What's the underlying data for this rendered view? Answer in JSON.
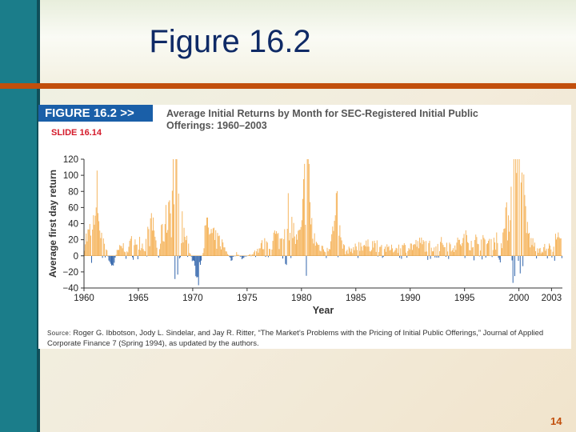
{
  "slide": {
    "title": "Figure 16.2",
    "figure_label": "FIGURE 16.2 >>",
    "slide_label": "SLIDE 16.14",
    "source_label": "Source:",
    "source_text": "Roger G. Ibbotson, Jody L. Sindelar, and Jay R. Ritter, “The Market’s Problems with the Pricing of Initial Public Offerings,” Journal of Applied Corporate Finance 7 (Spring 1994), as updated by the authors.",
    "page_number": "14"
  },
  "chart_data": {
    "type": "bar",
    "title": "Average Initial Returns by Month for SEC-Registered Initial Public Offerings: 1960–2003",
    "xlabel": "Year",
    "ylabel": "Average first day return",
    "xlim": [
      1960,
      2004
    ],
    "ylim": [
      -40,
      120
    ],
    "x_ticks": [
      1960,
      1965,
      1970,
      1975,
      1980,
      1985,
      1990,
      1995,
      2000,
      2003
    ],
    "y_ticks": [
      -40,
      -20,
      0,
      20,
      40,
      60,
      80,
      100,
      120
    ],
    "grid": false,
    "positive_color": "#f5b35a",
    "negative_color": "#2a5fa8",
    "anchors": [
      [
        1960.0,
        18
      ],
      [
        1960.5,
        28
      ],
      [
        1961.0,
        40
      ],
      [
        1961.2,
        75
      ],
      [
        1961.5,
        30
      ],
      [
        1962.0,
        10
      ],
      [
        1962.3,
        -10
      ],
      [
        1962.6,
        -15
      ],
      [
        1963.0,
        5
      ],
      [
        1963.5,
        12
      ],
      [
        1964.0,
        8
      ],
      [
        1964.5,
        20
      ],
      [
        1965.0,
        22
      ],
      [
        1965.5,
        10
      ],
      [
        1966.0,
        30
      ],
      [
        1966.4,
        38
      ],
      [
        1966.8,
        -6
      ],
      [
        1967.0,
        20
      ],
      [
        1967.5,
        40
      ],
      [
        1967.8,
        70
      ],
      [
        1968.0,
        60
      ],
      [
        1968.2,
        100
      ],
      [
        1968.5,
        85
      ],
      [
        1968.8,
        55
      ],
      [
        1969.0,
        35
      ],
      [
        1969.5,
        15
      ],
      [
        1970.0,
        -10
      ],
      [
        1970.4,
        -28
      ],
      [
        1970.8,
        -5
      ],
      [
        1971.0,
        20
      ],
      [
        1971.3,
        35
      ],
      [
        1971.7,
        25
      ],
      [
        1972.0,
        20
      ],
      [
        1972.5,
        18
      ],
      [
        1973.0,
        8
      ],
      [
        1973.5,
        -5
      ],
      [
        1974.0,
        3
      ],
      [
        1974.5,
        -3
      ],
      [
        1975.0,
        0
      ],
      [
        1975.5,
        3
      ],
      [
        1976.0,
        8
      ],
      [
        1976.5,
        15
      ],
      [
        1977.0,
        8
      ],
      [
        1977.5,
        25
      ],
      [
        1978.0,
        18
      ],
      [
        1978.5,
        30
      ],
      [
        1978.8,
        55
      ],
      [
        1979.0,
        40
      ],
      [
        1979.5,
        18
      ],
      [
        1980.0,
        30
      ],
      [
        1980.2,
        75
      ],
      [
        1980.5,
        120
      ],
      [
        1980.8,
        50
      ],
      [
        1981.0,
        25
      ],
      [
        1981.5,
        12
      ],
      [
        1982.0,
        10
      ],
      [
        1982.5,
        12
      ],
      [
        1983.0,
        35
      ],
      [
        1983.2,
        55
      ],
      [
        1983.5,
        25
      ],
      [
        1984.0,
        5
      ],
      [
        1984.5,
        8
      ],
      [
        1985.0,
        10
      ],
      [
        1985.5,
        15
      ],
      [
        1986.0,
        12
      ],
      [
        1986.5,
        15
      ],
      [
        1987.0,
        12
      ],
      [
        1987.5,
        10
      ],
      [
        1988.0,
        8
      ],
      [
        1989.0,
        10
      ],
      [
        1990.0,
        12
      ],
      [
        1991.0,
        15
      ],
      [
        1992.0,
        12
      ],
      [
        1993.0,
        15
      ],
      [
        1994.0,
        12
      ],
      [
        1995.0,
        20
      ],
      [
        1996.0,
        18
      ],
      [
        1997.0,
        15
      ],
      [
        1998.0,
        20
      ],
      [
        1998.5,
        25
      ],
      [
        1999.0,
        50
      ],
      [
        1999.5,
        100
      ],
      [
        2000.0,
        120
      ],
      [
        2000.3,
        80
      ],
      [
        2000.6,
        40
      ],
      [
        2001.0,
        18
      ],
      [
        2001.5,
        12
      ],
      [
        2002.0,
        8
      ],
      [
        2002.5,
        10
      ],
      [
        2003.0,
        10
      ],
      [
        2003.5,
        22
      ],
      [
        2004.0,
        12
      ]
    ]
  }
}
